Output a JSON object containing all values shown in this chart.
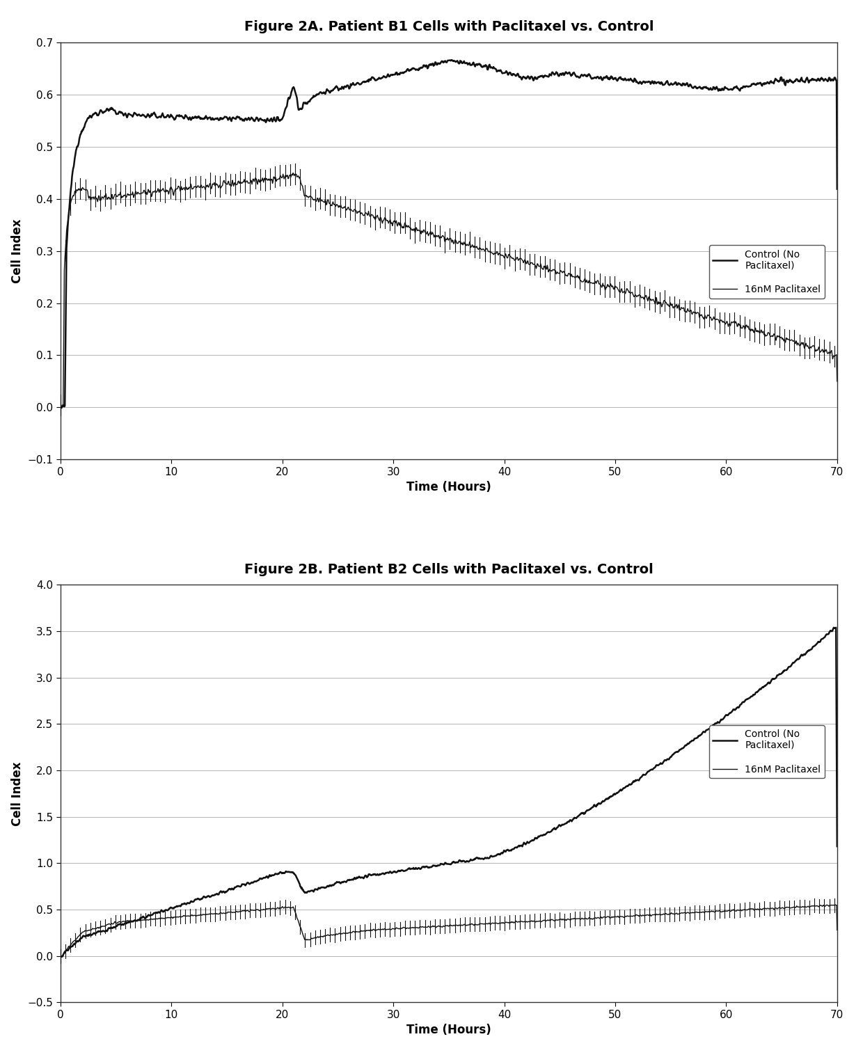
{
  "fig2a": {
    "title": "Figure 2A. Patient B1 Cells with Paclitaxel vs. Control",
    "xlabel": "Time (Hours)",
    "ylabel": "Cell Index",
    "xlim": [
      0,
      70
    ],
    "ylim": [
      -0.1,
      0.7
    ],
    "yticks": [
      -0.1,
      0,
      0.1,
      0.2,
      0.3,
      0.4,
      0.5,
      0.6,
      0.7
    ],
    "xticks": [
      0,
      10,
      20,
      30,
      40,
      50,
      60,
      70
    ],
    "legend_control": "Control (No\nPaclitaxel)",
    "legend_paclitaxel": "16nM Paclitaxel"
  },
  "fig2b": {
    "title": "Figure 2B. Patient B2 Cells with Paclitaxel vs. Control",
    "xlabel": "Time (Hours)",
    "ylabel": "Cell Index",
    "xlim": [
      0,
      70
    ],
    "ylim": [
      -0.5,
      4
    ],
    "yticks": [
      -0.5,
      0,
      0.5,
      1.0,
      1.5,
      2.0,
      2.5,
      3.0,
      3.5,
      4.0
    ],
    "xticks": [
      0,
      10,
      20,
      30,
      40,
      50,
      60,
      70
    ],
    "legend_control": "Control (No\nPaclitaxel)",
    "legend_paclitaxel": "16nM Paclitaxel"
  },
  "background_color": "#ffffff",
  "plot_bg_color": "#ffffff",
  "line_color": "#111111",
  "title_fontsize": 14,
  "axis_fontsize": 12,
  "tick_fontsize": 11
}
